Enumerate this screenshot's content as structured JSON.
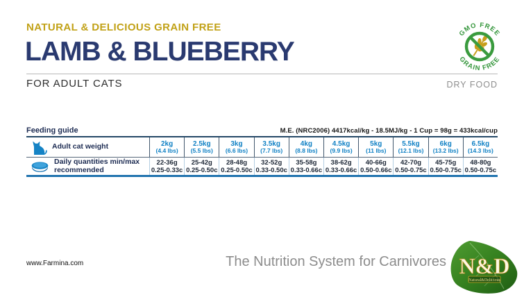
{
  "header": {
    "tagline": "NATURAL & DELICIOUS GRAIN FREE",
    "title": "LAMB & BLUEBERRY",
    "subtitle": "FOR ADULT CATS",
    "food_type": "DRY FOOD"
  },
  "badge": {
    "top_label": "GMO FREE",
    "bottom_label": "GRAIN FREE",
    "icon": "wheat-no-symbol",
    "color_green": "#3a9b3e",
    "color_gold": "#c79e1b"
  },
  "feeding_guide": {
    "title": "Feeding guide",
    "energy_info": "M.E. (NRC2006) 4417kcal/kg - 18.5MJ/kg - 1 Cup = 98g = 433kcal/cup",
    "weight_row_label": "Adult cat weight",
    "quantity_row_label": "Daily quantities min/max recommended",
    "columns": [
      {
        "kg": "2kg",
        "lbs": "(4.4 lbs)",
        "grams": "22-36g",
        "cups": "0.25-0.33c"
      },
      {
        "kg": "2.5kg",
        "lbs": "(5.5 lbs)",
        "grams": "25-42g",
        "cups": "0.25-0.50c"
      },
      {
        "kg": "3kg",
        "lbs": "(6.6 lbs)",
        "grams": "28-48g",
        "cups": "0.25-0.50c"
      },
      {
        "kg": "3.5kg",
        "lbs": "(7.7 lbs)",
        "grams": "32-52g",
        "cups": "0.33-0.50c"
      },
      {
        "kg": "4kg",
        "lbs": "(8.8 lbs)",
        "grams": "35-58g",
        "cups": "0.33-0.66c"
      },
      {
        "kg": "4.5kg",
        "lbs": "(9.9 lbs)",
        "grams": "38-62g",
        "cups": "0.33-0.66c"
      },
      {
        "kg": "5kg",
        "lbs": "(11 lbs)",
        "grams": "40-66g",
        "cups": "0.50-0.66c"
      },
      {
        "kg": "5.5kg",
        "lbs": "(12.1 lbs)",
        "grams": "42-70g",
        "cups": "0.50-0.75c"
      },
      {
        "kg": "6kg",
        "lbs": "(13.2 lbs)",
        "grams": "45-75g",
        "cups": "0.50-0.75c"
      },
      {
        "kg": "6.5kg",
        "lbs": "(14.3 lbs)",
        "grams": "48-80g",
        "cups": "0.50-0.75c"
      }
    ]
  },
  "footer": {
    "website": "www.Farmina.com",
    "strapline": "The Nutrition System for Carnivores",
    "logo_brand": "N&D",
    "logo_sub": "Natural&Delicious"
  },
  "colors": {
    "gold": "#c1a116",
    "navy": "#2a3a70",
    "bright_blue": "#0f80c4",
    "table_bottom_rule": "#1f72ae",
    "gray_text": "#8c8c8c",
    "badge_green": "#3a9b3e",
    "leaf_green": "#3e8f2a"
  }
}
